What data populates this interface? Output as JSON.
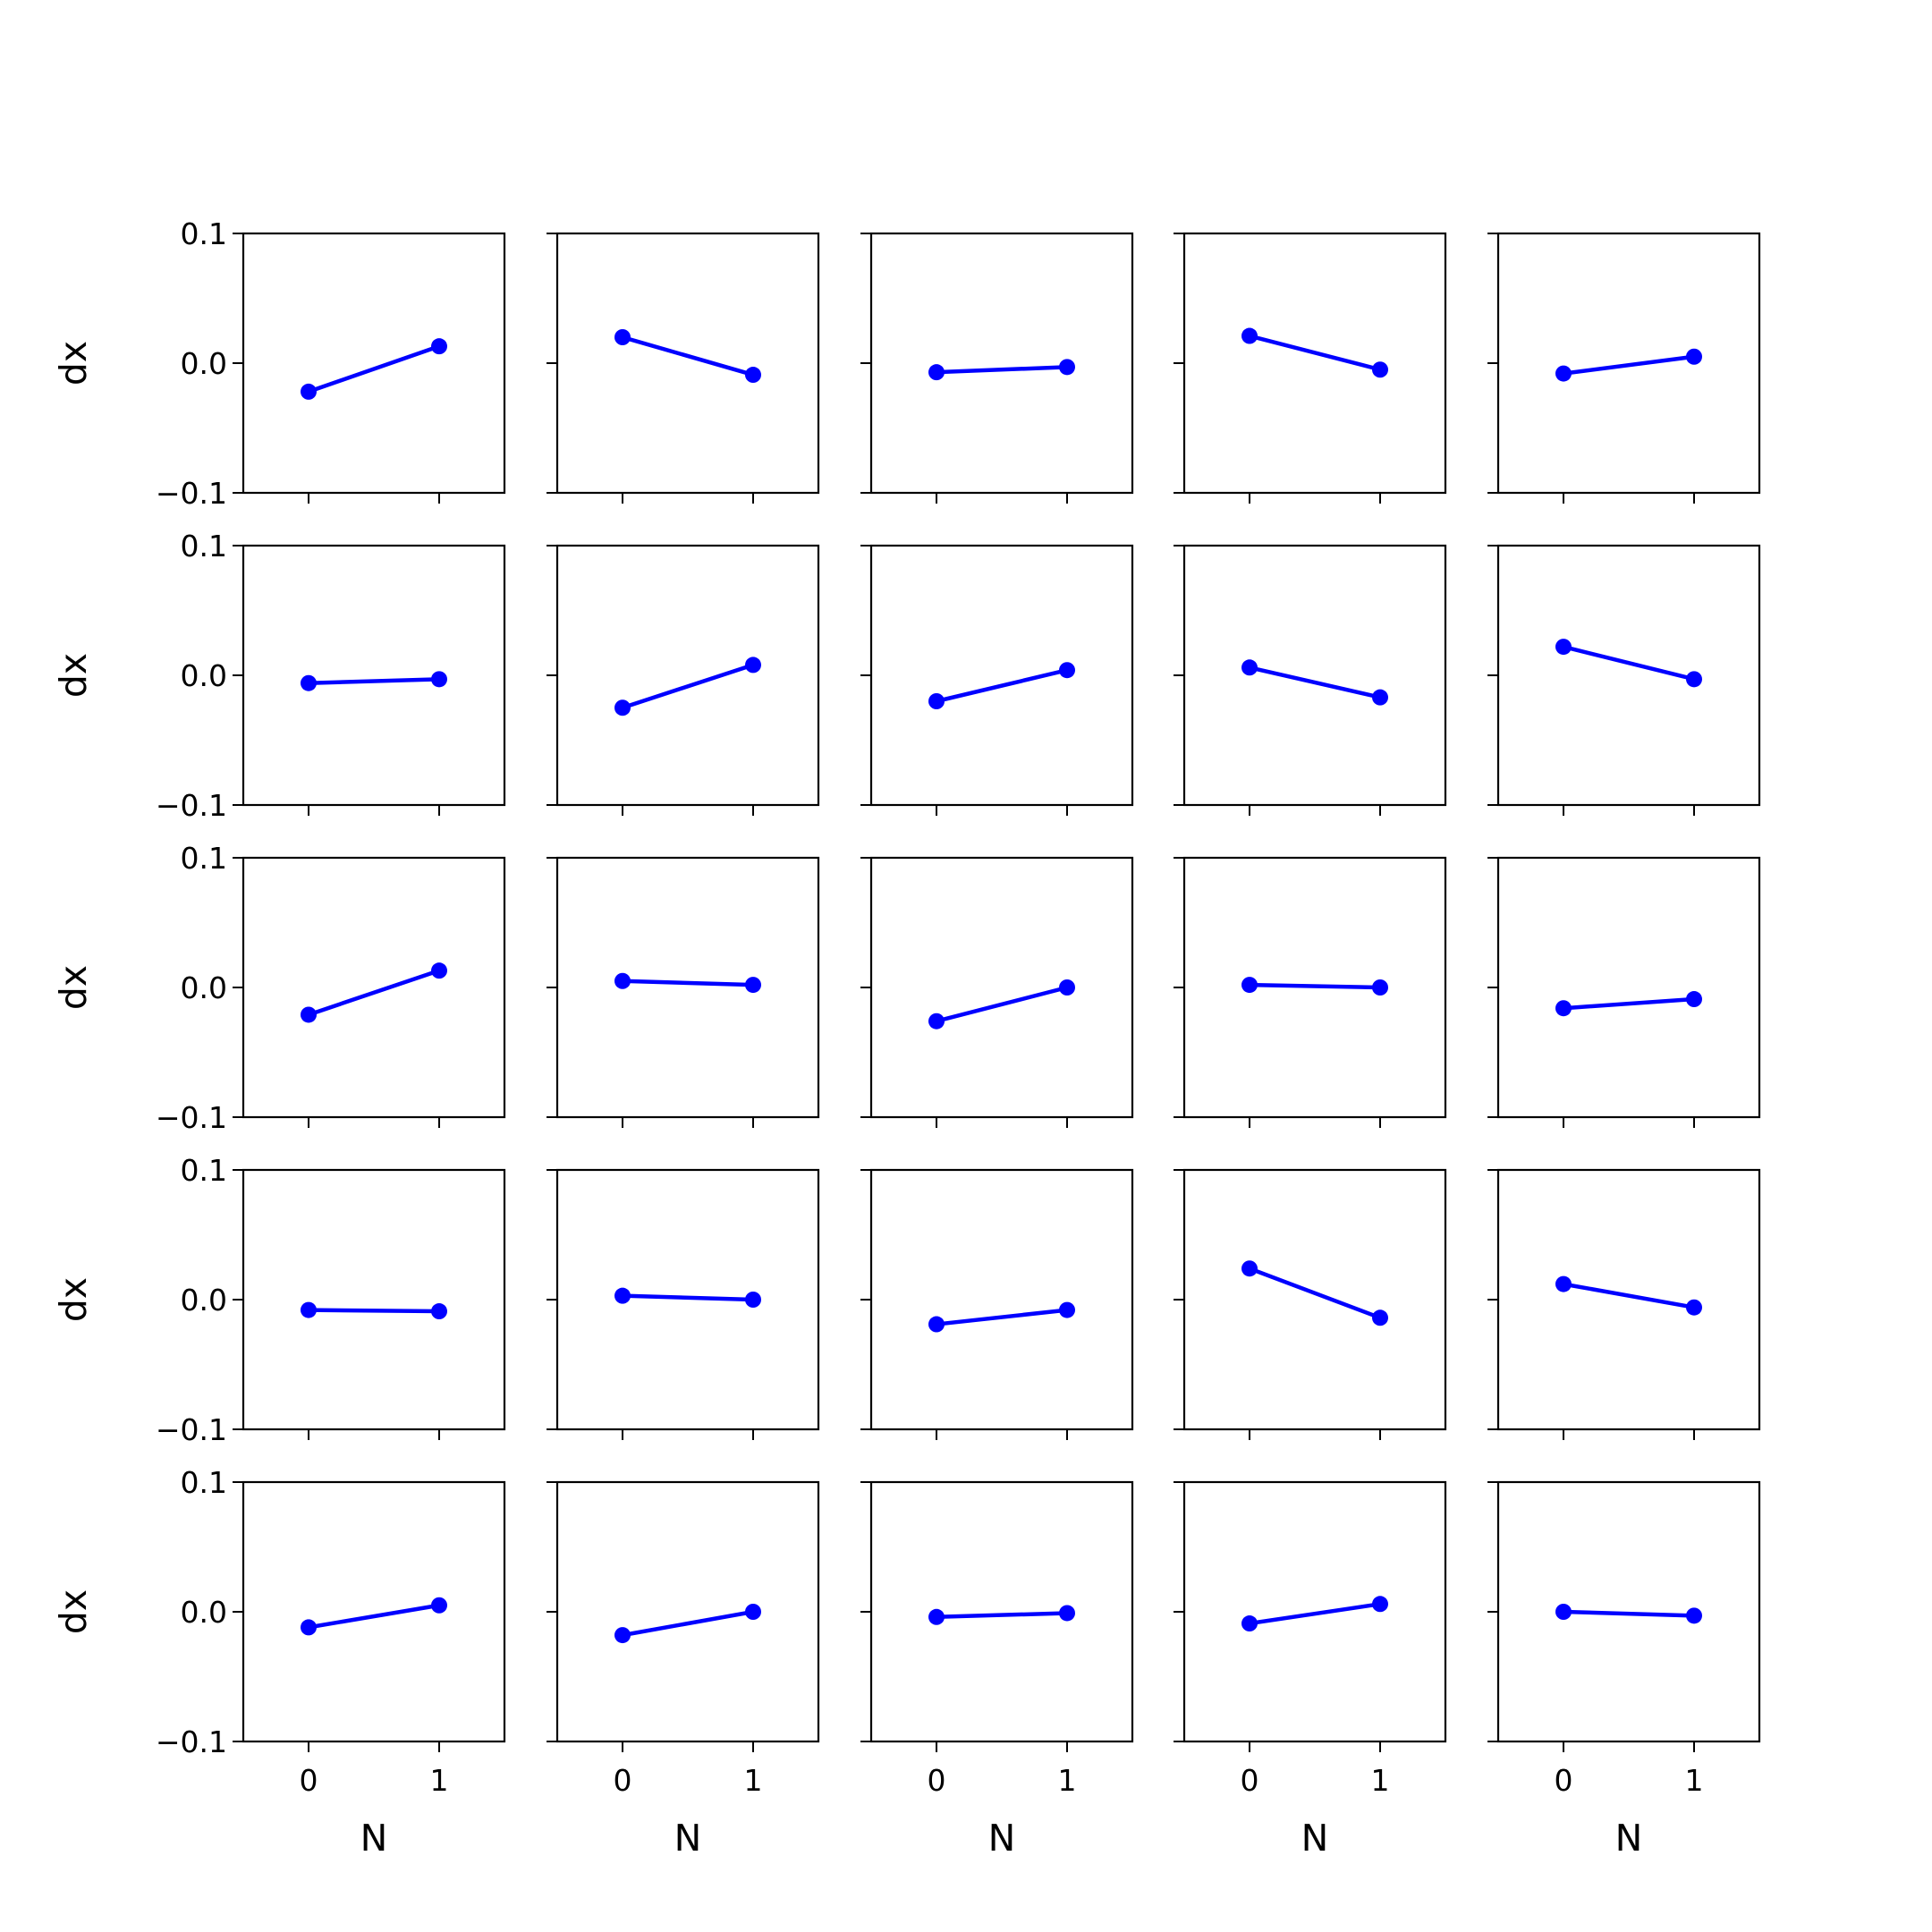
{
  "colors": {
    "line": "#0000ff",
    "axes": "#000000",
    "background": "#ffffff"
  },
  "chart_data": {
    "type": "line",
    "layout": "grid 5x5 small multiples, shared x and y axes",
    "rows": 5,
    "cols": 5,
    "xlabel": "N",
    "ylabel": "dx",
    "x": [
      0,
      1
    ],
    "xticks": [
      "0",
      "1"
    ],
    "xlim": [
      -0.5,
      1.5
    ],
    "yticks": [
      "−0.1",
      "0.0",
      "0.1"
    ],
    "ytick_values": [
      -0.1,
      0.0,
      0.1
    ],
    "ylim": [
      -0.1,
      0.1
    ],
    "grid": false,
    "marker": "circle",
    "panels": [
      {
        "values": [
          -0.022,
          0.013
        ]
      },
      {
        "values": [
          0.02,
          -0.009
        ]
      },
      {
        "values": [
          -0.007,
          -0.003
        ]
      },
      {
        "values": [
          0.021,
          -0.005
        ]
      },
      {
        "values": [
          -0.008,
          0.005
        ]
      },
      {
        "values": [
          -0.006,
          -0.003
        ]
      },
      {
        "values": [
          -0.025,
          0.008
        ]
      },
      {
        "values": [
          -0.02,
          0.004
        ]
      },
      {
        "values": [
          0.006,
          -0.017
        ]
      },
      {
        "values": [
          0.022,
          -0.003
        ]
      },
      {
        "values": [
          -0.021,
          0.013
        ]
      },
      {
        "values": [
          0.005,
          0.002
        ]
      },
      {
        "values": [
          -0.026,
          0.0
        ]
      },
      {
        "values": [
          0.002,
          0.0
        ]
      },
      {
        "values": [
          -0.016,
          -0.009
        ]
      },
      {
        "values": [
          -0.008,
          -0.009
        ]
      },
      {
        "values": [
          0.003,
          0.0
        ]
      },
      {
        "values": [
          -0.019,
          -0.008
        ]
      },
      {
        "values": [
          0.024,
          -0.014
        ]
      },
      {
        "values": [
          0.012,
          -0.006
        ]
      },
      {
        "values": [
          -0.012,
          0.005
        ]
      },
      {
        "values": [
          -0.018,
          0.0
        ]
      },
      {
        "values": [
          -0.004,
          -0.001
        ]
      },
      {
        "values": [
          -0.009,
          0.006
        ]
      },
      {
        "values": [
          0.0,
          -0.003
        ]
      }
    ]
  }
}
